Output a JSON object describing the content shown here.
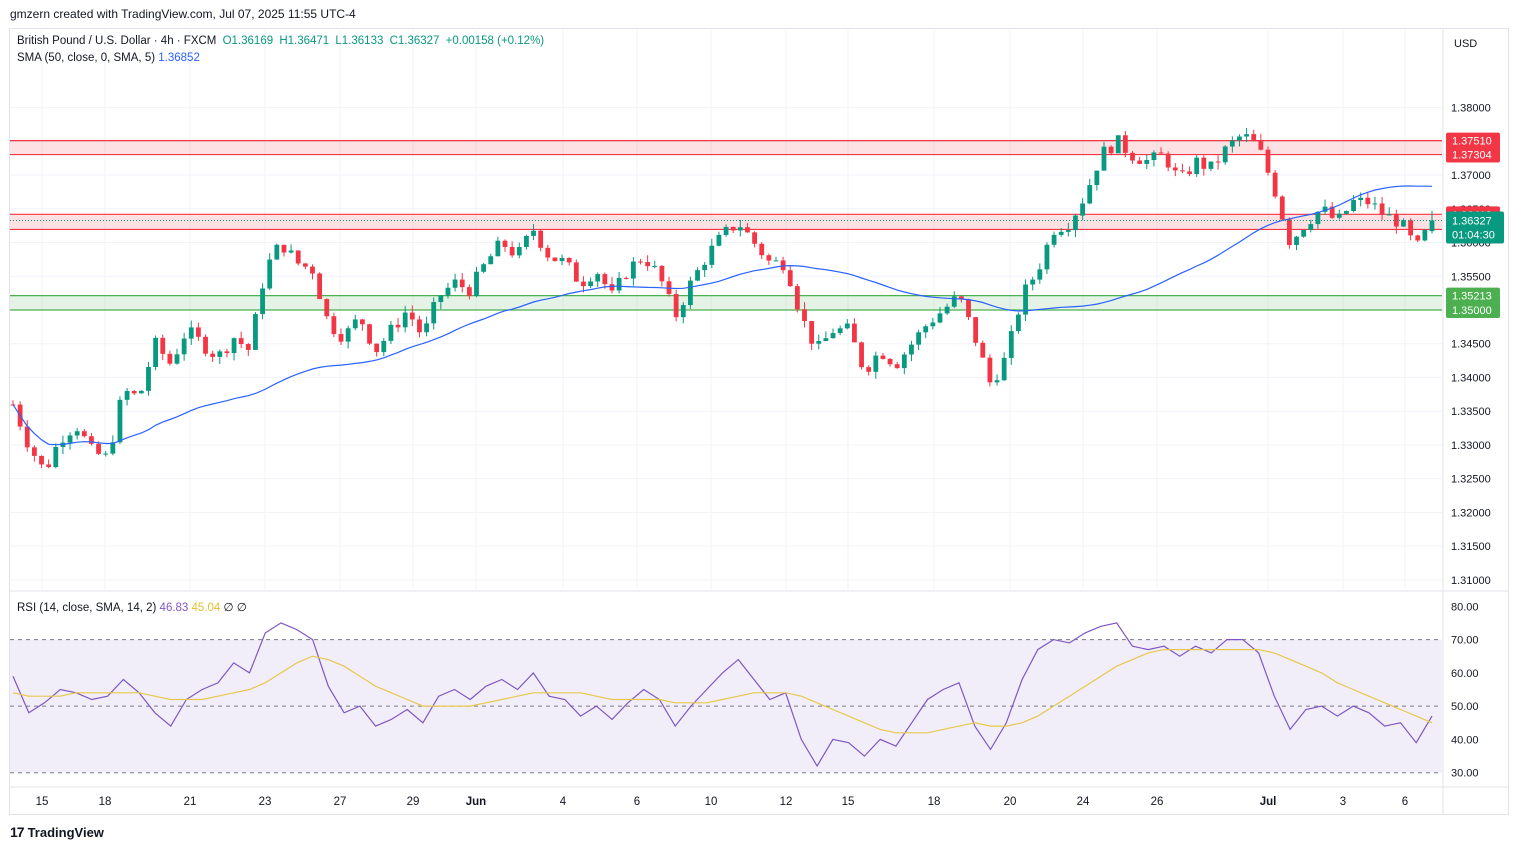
{
  "header": {
    "credit": "gmzern created with TradingView.com, Jul 07, 2025 11:55 UTC-4"
  },
  "legend": {
    "symbol": "British Pound / U.S. Dollar · 4h · FXCM",
    "open": "O1.36169",
    "high": "H1.36471",
    "low": "L1.36133",
    "close": "C1.36327",
    "change": "+0.00158 (+0.12%)",
    "sma_label": "SMA (50, close, 0, SMA, 5)",
    "sma_value": "1.36852",
    "rsi_label": "RSI (14, close, SMA, 14, 2)",
    "rsi_value": "46.83",
    "rsi_ma_value": "45.04",
    "rsi_extra": "∅ ∅"
  },
  "currency": "USD",
  "footer": {
    "brand": "TradingView",
    "mark": "17"
  },
  "colors": {
    "up": "#089981",
    "down": "#f23645",
    "sma": "#2962ff",
    "rsi": "#7e57c2",
    "rsi_ma": "#e6c84c",
    "zone_red": "#f23645",
    "zone_green": "#4caf50"
  },
  "chart_data": [
    {
      "type": "candlestick",
      "title": "British Pound / U.S. Dollar · 4h · FXCM",
      "y_range": [
        1.3085,
        1.3915
      ],
      "y_ticks": [
        "1.38000",
        "1.37500",
        "1.37000",
        "1.36500",
        "1.36000",
        "1.35500",
        "1.35000",
        "1.34500",
        "1.34000",
        "1.33500",
        "1.33000",
        "1.32500",
        "1.32000",
        "1.31500",
        "1.31000"
      ],
      "x_ticks": [
        "15",
        "18",
        "21",
        "23",
        "27",
        "29",
        "Jun",
        "4",
        "6",
        "10",
        "12",
        "15",
        "18",
        "20",
        "24",
        "26",
        "Jul",
        "3",
        "6"
      ],
      "zones": [
        {
          "color": "red",
          "top": 1.3751,
          "bottom": 1.37304,
          "labels": [
            "1.37510",
            "1.37304"
          ]
        },
        {
          "color": "red",
          "top": 1.36418,
          "bottom": 1.36194,
          "labels": [
            "1.36418",
            "1.36194"
          ]
        },
        {
          "color": "green",
          "top": 1.35213,
          "bottom": 1.35,
          "labels": [
            "1.35213",
            "1.35000"
          ]
        }
      ],
      "last_price": {
        "value": "1.36327",
        "countdown": "01:04:30"
      },
      "sma": {
        "name": "SMA (50, close, 0, SMA, 5)",
        "value": 1.36852
      },
      "close_path": [
        1.336,
        1.33,
        1.326,
        1.331,
        1.333,
        1.329,
        1.328,
        1.338,
        1.337,
        1.345,
        1.342,
        1.347,
        1.345,
        1.343,
        1.346,
        1.344,
        1.356,
        1.36,
        1.357,
        1.356,
        1.348,
        1.346,
        1.349,
        1.344,
        1.347,
        1.35,
        1.346,
        1.352,
        1.354,
        1.353,
        1.357,
        1.36,
        1.358,
        1.362,
        1.358,
        1.357,
        1.354,
        1.356,
        1.352,
        1.356,
        1.358,
        1.355,
        1.349,
        1.354,
        1.358,
        1.361,
        1.363,
        1.36,
        1.357,
        1.357,
        1.349,
        1.344,
        1.347,
        1.347,
        1.341,
        1.344,
        1.342,
        1.345,
        1.348,
        1.35,
        1.352,
        1.346,
        1.339,
        1.343,
        1.352,
        1.356,
        1.362,
        1.363,
        1.367,
        1.373,
        1.375,
        1.373,
        1.372,
        1.373,
        1.369,
        1.372,
        1.371,
        1.374,
        1.376,
        1.374,
        1.368,
        1.36,
        1.363,
        1.365,
        1.363,
        1.366,
        1.366,
        1.364,
        1.363,
        1.359,
        1.363
      ]
    },
    {
      "type": "line",
      "title": "RSI (14, close, SMA, 14, 2)",
      "y_range": [
        26,
        84
      ],
      "y_ticks": [
        "80.00",
        "70.00",
        "60.00",
        "50.00",
        "40.00",
        "30.00"
      ],
      "bands": {
        "upper": 70,
        "lower": 30
      },
      "series": [
        {
          "name": "RSI",
          "values": [
            59,
            48,
            51,
            55,
            54,
            52,
            53,
            58,
            54,
            48,
            44,
            52,
            55,
            57,
            63,
            60,
            72,
            75,
            73,
            70,
            56,
            48,
            50,
            44,
            46,
            49,
            45,
            53,
            55,
            52,
            56,
            58,
            55,
            60,
            53,
            52,
            47,
            50,
            46,
            51,
            55,
            52,
            44,
            50,
            55,
            60,
            64,
            58,
            52,
            54,
            40,
            32,
            40,
            39,
            35,
            40,
            38,
            45,
            52,
            55,
            57,
            44,
            37,
            45,
            58,
            67,
            70,
            69,
            72,
            74,
            75,
            68,
            67,
            68,
            65,
            68,
            66,
            70,
            70,
            66,
            53,
            43,
            49,
            50,
            47,
            50,
            48,
            44,
            45,
            39,
            47
          ]
        },
        {
          "name": "RSI SMA",
          "values": [
            54,
            53,
            53,
            53,
            54,
            54,
            54,
            54,
            54,
            53,
            52,
            52,
            52,
            53,
            54,
            55,
            57,
            60,
            63,
            65,
            64,
            62,
            59,
            56,
            54,
            52,
            50,
            50,
            50,
            50,
            51,
            52,
            53,
            54,
            54,
            54,
            54,
            53,
            52,
            52,
            52,
            52,
            51,
            51,
            51,
            52,
            53,
            54,
            54,
            54,
            53,
            51,
            49,
            47,
            45,
            43,
            42,
            42,
            42,
            43,
            44,
            45,
            44,
            44,
            45,
            47,
            50,
            53,
            56,
            59,
            62,
            64,
            66,
            67,
            67,
            67,
            67,
            67,
            67,
            67,
            66,
            64,
            62,
            60,
            57,
            55,
            53,
            51,
            49,
            47,
            45
          ]
        }
      ]
    }
  ]
}
